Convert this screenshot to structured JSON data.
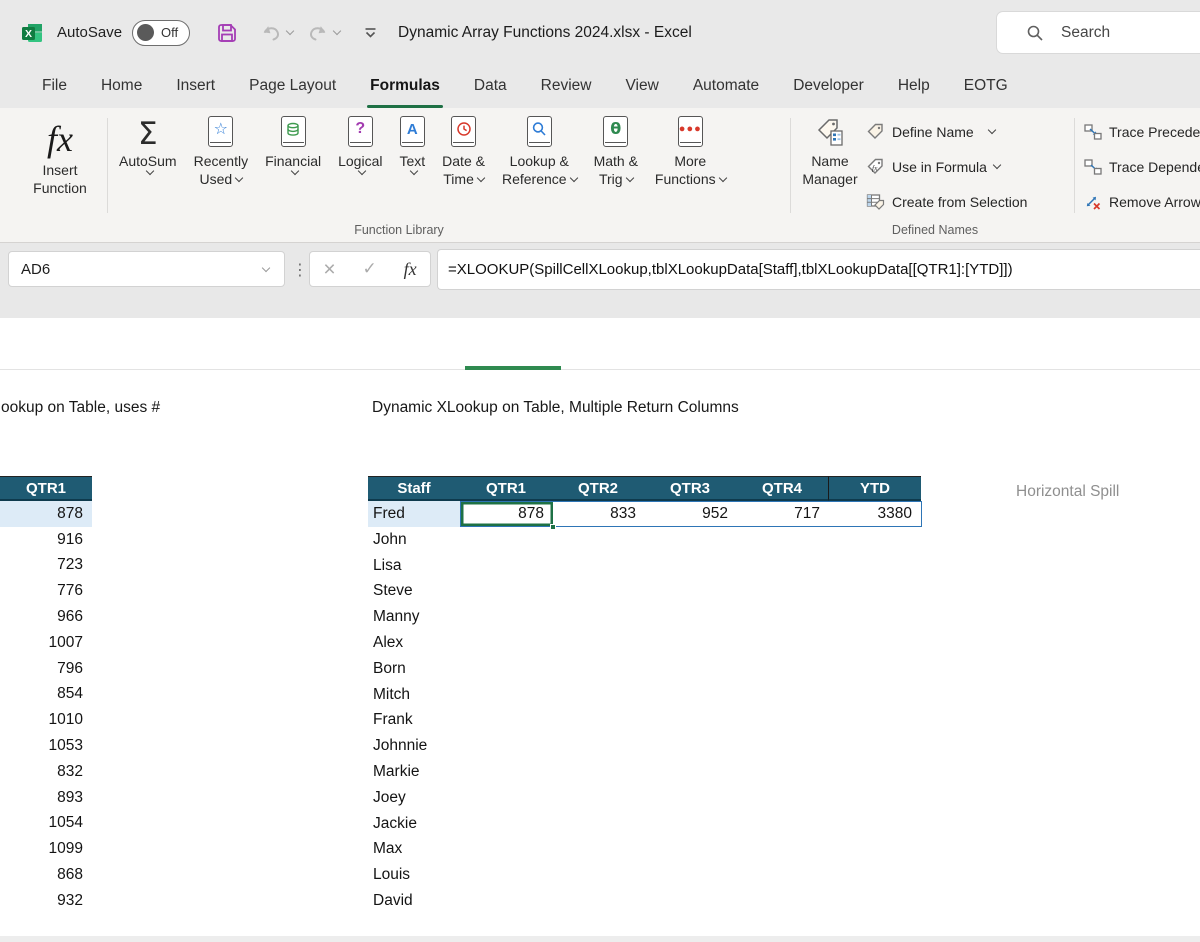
{
  "titlebar": {
    "autosave_label": "AutoSave",
    "autosave_state": "Off",
    "doc_title": "Dynamic Array Functions 2024.xlsx - Excel",
    "search_label": "Search"
  },
  "tabs": [
    "File",
    "Home",
    "Insert",
    "Page Layout",
    "Formulas",
    "Data",
    "Review",
    "View",
    "Automate",
    "Developer",
    "Help",
    "EOTG"
  ],
  "active_tab": "Formulas",
  "ribbon": {
    "function_library": {
      "group_label": "Function Library",
      "insert_function": {
        "l1": "Insert",
        "l2": "Function"
      },
      "buttons": [
        {
          "l1": "AutoSum",
          "l2": ""
        },
        {
          "l1": "Recently",
          "l2": "Used"
        },
        {
          "l1": "Financial",
          "l2": ""
        },
        {
          "l1": "Logical",
          "l2": ""
        },
        {
          "l1": "Text",
          "l2": ""
        },
        {
          "l1": "Date &",
          "l2": "Time"
        },
        {
          "l1": "Lookup &",
          "l2": "Reference"
        },
        {
          "l1": "Math &",
          "l2": "Trig"
        },
        {
          "l1": "More",
          "l2": "Functions"
        }
      ]
    },
    "defined_names": {
      "group_label": "Defined Names",
      "name_manager": {
        "l1": "Name",
        "l2": "Manager"
      },
      "items": [
        "Define Name",
        "Use in Formula",
        "Create from Selection"
      ]
    },
    "formula_auditing": {
      "items": [
        "Trace Precedents",
        "Trace Dependents",
        "Remove Arrows"
      ]
    }
  },
  "formula_bar": {
    "cell_ref": "AD6",
    "formula": "=XLOOKUP(SpillCellXLookup,tblXLookupData[Staff],tblXLookupData[[QTR1]:[YTD]])"
  },
  "sheet": {
    "left_heading": "ookup on Table, uses #",
    "main_heading": "Dynamic XLookup on Table, Multiple Return Columns",
    "spill_note": "Horizontal Spill",
    "left_table": {
      "header": "QTR1",
      "values": [
        878,
        916,
        723,
        776,
        966,
        1007,
        796,
        854,
        1010,
        1053,
        832,
        893,
        1054,
        1099,
        868,
        932
      ]
    },
    "main_table": {
      "headers": [
        "Staff",
        "QTR1",
        "QTR2",
        "QTR3",
        "QTR4",
        "YTD"
      ],
      "active_row": {
        "name": "Fred",
        "values": [
          878,
          833,
          952,
          717,
          3380
        ]
      },
      "names": [
        "John",
        "Lisa",
        "Steve",
        "Manny",
        "Alex",
        "Born",
        "Mitch",
        "Frank",
        "Johnnie",
        "Markie",
        "Joey",
        "Jackie",
        "Max",
        "Louis",
        "David"
      ]
    }
  },
  "colors": {
    "excel_green": "#107C41",
    "tab_accent": "#1E7044",
    "table_header": "#1F5B73",
    "band_blue": "#DDEBF7",
    "active_cell_green": "#1E7145",
    "spill_border_blue": "#2E75B6",
    "note_gray": "#8F8F8F",
    "save_purple": "#A43DB5",
    "green_bar": "#2F8A50"
  }
}
